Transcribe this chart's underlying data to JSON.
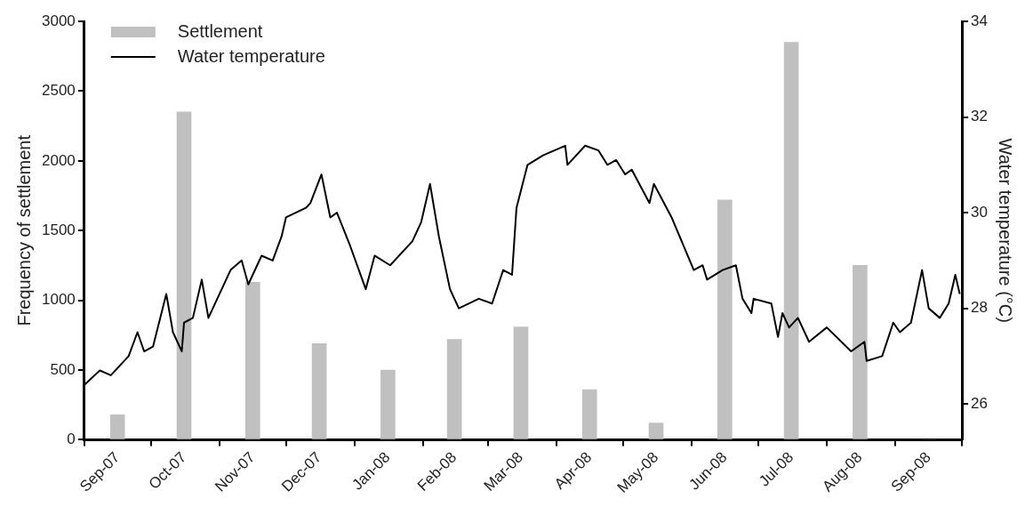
{
  "chart_data": {
    "type": "bar",
    "ylabel": "Frequency of settlement",
    "y2label": "Water temperature (°C)",
    "legend": "top left",
    "x": [
      "2007-09-16",
      "2007-10-16",
      "2007-11-16",
      "2007-12-16",
      "2008-01-16",
      "2008-02-15",
      "2008-03-16",
      "2008-04-16",
      "2008-05-16",
      "2008-06-16",
      "2008-07-16",
      "2008-08-16",
      "2008-09-16"
    ],
    "xlim": [
      "2007-09-01",
      "2008-10-01"
    ],
    "xticks": [
      {
        "value": "2007-09-01",
        "label": null
      },
      {
        "value": "2007-09-16",
        "label": "Sep-07"
      },
      {
        "value": "2007-10-01",
        "label": null
      },
      {
        "value": "2007-10-16",
        "label": "Oct-07"
      },
      {
        "value": "2007-11-01",
        "label": null
      },
      {
        "value": "2007-11-16",
        "label": "Nov-07"
      },
      {
        "value": "2007-12-01",
        "label": null
      },
      {
        "value": "2007-12-16",
        "label": "Dec-07"
      },
      {
        "value": "2008-01-01",
        "label": null
      },
      {
        "value": "2008-01-16",
        "label": "Jan-08"
      },
      {
        "value": "2008-02-01",
        "label": null
      },
      {
        "value": "2008-02-15",
        "label": "Feb-08"
      },
      {
        "value": "2008-03-01",
        "label": null
      },
      {
        "value": "2008-03-16",
        "label": "Mar-08"
      },
      {
        "value": "2008-04-01",
        "label": null
      },
      {
        "value": "2008-04-16",
        "label": "Apr-08"
      },
      {
        "value": "2008-05-01",
        "label": null
      },
      {
        "value": "2008-05-16",
        "label": "May-08"
      },
      {
        "value": "2008-06-01",
        "label": null
      },
      {
        "value": "2008-06-16",
        "label": "Jun-08"
      },
      {
        "value": "2008-07-01",
        "label": null
      },
      {
        "value": "2008-07-16",
        "label": "Jul-08"
      },
      {
        "value": "2008-08-01",
        "label": null
      },
      {
        "value": "2008-08-16",
        "label": "Aug-08"
      },
      {
        "value": "2008-09-01",
        "label": null
      },
      {
        "value": "2008-09-16",
        "label": "Sep-08"
      },
      {
        "value": "2008-10-01",
        "label": null
      }
    ],
    "ylim": [
      0,
      3000
    ],
    "yticks": [
      0,
      500,
      1000,
      1500,
      2000,
      2500,
      3000
    ],
    "y2lim": [
      25.25,
      34
    ],
    "y2ticks": [
      26,
      28,
      30,
      32,
      34
    ],
    "series": [
      {
        "name": "Settlement",
        "color": "#c0c0c0",
        "values": [
          180,
          2350,
          1130,
          690,
          500,
          720,
          810,
          360,
          120,
          1720,
          2850,
          1250,
          0
        ]
      },
      {
        "name": "Water temperature",
        "type": "line",
        "axis": "y2",
        "color": "#000000",
        "x": [
          "2007-09-01",
          "2007-09-08",
          "2007-09-13",
          "2007-09-21",
          "2007-09-25",
          "2007-09-28",
          "2007-10-02",
          "2007-10-08",
          "2007-10-11",
          "2007-10-15",
          "2007-10-16",
          "2007-10-20",
          "2007-10-24",
          "2007-10-27",
          "2007-11-06",
          "2007-11-11",
          "2007-11-14",
          "2007-11-20",
          "2007-11-25",
          "2007-11-29",
          "2007-12-01",
          "2007-12-10",
          "2007-12-12",
          "2007-12-17",
          "2007-12-21",
          "2007-12-24",
          "2007-12-30",
          "2008-01-06",
          "2008-01-10",
          "2008-01-17",
          "2008-01-27",
          "2008-01-31",
          "2008-02-04",
          "2008-02-08",
          "2008-02-13",
          "2008-02-17",
          "2008-02-26",
          "2008-03-03",
          "2008-03-08",
          "2008-03-12",
          "2008-03-14",
          "2008-03-19",
          "2008-03-26",
          "2008-04-05",
          "2008-04-06",
          "2008-04-14",
          "2008-04-20",
          "2008-04-24",
          "2008-04-28",
          "2008-05-02",
          "2008-05-05",
          "2008-05-13",
          "2008-05-15",
          "2008-05-23",
          "2008-06-02",
          "2008-06-06",
          "2008-06-08",
          "2008-06-15",
          "2008-06-21",
          "2008-06-24",
          "2008-06-28",
          "2008-06-29",
          "2008-07-07",
          "2008-07-10",
          "2008-07-12",
          "2008-07-15",
          "2008-07-19",
          "2008-07-24",
          "2008-08-01",
          "2008-08-12",
          "2008-08-18",
          "2008-08-19",
          "2008-08-26",
          "2008-08-31",
          "2008-09-03",
          "2008-09-08",
          "2008-09-13",
          "2008-09-16",
          "2008-09-21",
          "2008-09-25",
          "2008-09-28",
          "2008-09-30"
        ],
        "values": [
          26.4,
          26.7,
          26.6,
          27.0,
          27.5,
          27.1,
          27.2,
          28.3,
          27.5,
          27.1,
          27.7,
          27.8,
          28.6,
          27.8,
          28.8,
          29.0,
          28.5,
          29.1,
          29.0,
          29.5,
          29.9,
          30.1,
          30.2,
          30.8,
          29.9,
          30.0,
          29.3,
          28.4,
          29.1,
          28.9,
          29.4,
          29.8,
          30.6,
          29.5,
          28.4,
          28.0,
          28.2,
          28.1,
          28.8,
          28.7,
          30.1,
          31.0,
          31.2,
          31.4,
          31.0,
          31.4,
          31.3,
          31.0,
          31.1,
          30.8,
          30.9,
          30.2,
          30.6,
          29.9,
          28.8,
          28.9,
          28.6,
          28.8,
          28.9,
          28.2,
          27.9,
          28.2,
          28.1,
          27.4,
          27.9,
          27.6,
          27.8,
          27.3,
          27.6,
          27.1,
          27.3,
          26.9,
          27.0,
          27.7,
          27.5,
          27.7,
          28.8,
          28.0,
          27.8,
          28.1,
          28.7,
          28.3
        ]
      }
    ]
  }
}
